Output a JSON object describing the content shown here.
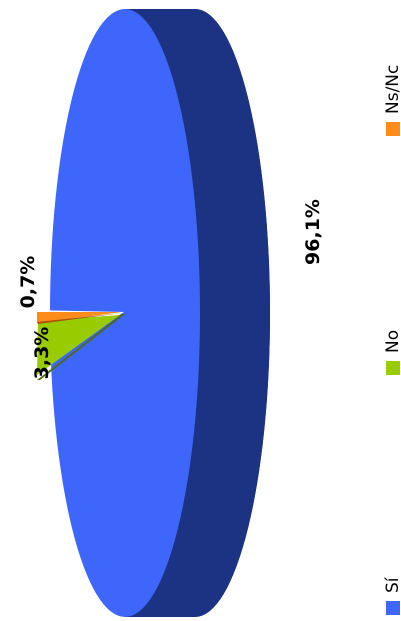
{
  "chart_data": {
    "type": "pie",
    "title": "",
    "style": "3d-exploded, rotated 90° counter-clockwise",
    "slices": [
      {
        "label": "Sí",
        "value": 96.1,
        "value_label": "96,1%",
        "color": "#3F66FB",
        "side_color": "#1B3382"
      },
      {
        "label": "No",
        "value": 3.3,
        "value_label": "3,3%",
        "color": "#99CC00",
        "side_color": "#4E6A0E"
      },
      {
        "label": "Ns/Nc",
        "value": 0.7,
        "value_label": "0,7%",
        "color": "#FF8C1A",
        "side_color": "#A85400"
      }
    ],
    "legend": {
      "placement": "right (rotated)",
      "items": [
        "Sí",
        "No",
        "Ns/Nc"
      ]
    }
  }
}
